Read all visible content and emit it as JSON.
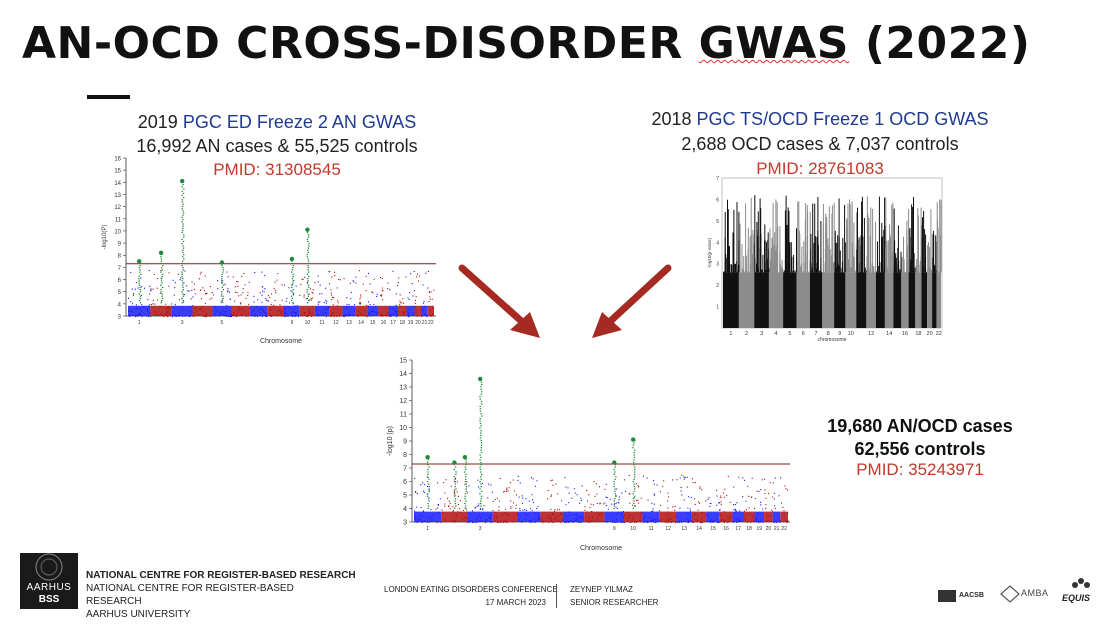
{
  "slide": {
    "title_main": "AN-OCD CROSS-DISORDER ",
    "title_gwas": "GWAS",
    "title_year": " (2022)"
  },
  "left_study": {
    "line1_prefix": "2019 ",
    "line1_highlight": "PGC ED Freeze 2 AN GWAS",
    "line2": "16,992 AN cases & 55,525 controls",
    "pmid": "PMID: 31308545"
  },
  "right_study": {
    "line1_prefix": "2018 ",
    "line1_highlight": "PGC TS/OCD Freeze 1 OCD GWAS",
    "line2": "2,688 OCD cases & 7,037 controls",
    "pmid": "PMID: 28761083"
  },
  "combined_study": {
    "line1": "19,680 AN/OCD cases",
    "line2": "62,556 controls",
    "pmid": "PMID: 35243971"
  },
  "footer": {
    "logo_top": "AARHUS",
    "logo_bottom": "BSS",
    "centre_bold": "NATIONAL CENTRE FOR REGISTER-BASED RESEARCH",
    "centre_line1": "NATIONAL CENTRE FOR REGISTER-BASED",
    "centre_line2": "RESEARCH",
    "centre_line3": "AARHUS UNIVERSITY",
    "conference": "LONDON EATING DISORDERS CONFERENCE",
    "date": "17 MARCH 2023",
    "presenter": "ZEYNEP YILMAZ",
    "role": "SENIOR RESEARCHER",
    "accred1": "AACSB",
    "accred2": "AMBA",
    "accred3": "EQUIS"
  },
  "colors": {
    "pmid_red": "#c0392b",
    "highlight_blue": "#1f3a93",
    "arrow_red": "#a52a22",
    "chrom_blue": "#1a1aff",
    "chrom_red": "#b01010",
    "hit_green": "#1f8a3a"
  },
  "chart_data": [
    {
      "type": "scatter",
      "name": "an-manhattan",
      "ylabel": "-log10(P)",
      "xlabel": "Chromosome",
      "ylim": [
        3,
        16
      ],
      "yticks": [
        3,
        4,
        5,
        6,
        7,
        8,
        9,
        10,
        11,
        12,
        13,
        14,
        15,
        16
      ],
      "threshold": 7.3,
      "peaks": [
        {
          "chr": 1,
          "value": 7.5
        },
        {
          "chr": 2,
          "value": 8.2
        },
        {
          "chr": 3,
          "value": 14.1
        },
        {
          "chr": 5,
          "value": 7.4
        },
        {
          "chr": 9,
          "value": 7.7
        },
        {
          "chr": 10,
          "value": 10.1
        }
      ]
    },
    {
      "type": "scatter",
      "name": "ocd-manhattan",
      "ylabel": "-log10(p-value)",
      "xlabel": "chromosome",
      "ylim": [
        0,
        7
      ],
      "yticks": [
        1,
        2,
        3,
        4,
        5,
        6,
        7
      ],
      "xticks": [
        "1",
        "2",
        "3",
        "4",
        "5",
        "6",
        "7",
        "8",
        "9",
        "10",
        "12",
        "14",
        "16",
        "18",
        "20",
        "22"
      ]
    },
    {
      "type": "scatter",
      "name": "an-ocd-manhattan",
      "ylabel": "-log10 (p)",
      "xlabel": "Chromosome",
      "ylim": [
        3,
        15
      ],
      "yticks": [
        3,
        4,
        5,
        6,
        7,
        8,
        9,
        10,
        11,
        12,
        13,
        14,
        15
      ],
      "threshold": 7.3,
      "peaks": [
        {
          "chr": 1,
          "value": 7.8
        },
        {
          "chr": 2,
          "value": 7.4
        },
        {
          "chr": 2.5,
          "value": 7.8
        },
        {
          "chr": 3,
          "value": 13.6
        },
        {
          "chr": 9,
          "value": 7.4
        },
        {
          "chr": 10,
          "value": 9.1
        }
      ]
    }
  ]
}
